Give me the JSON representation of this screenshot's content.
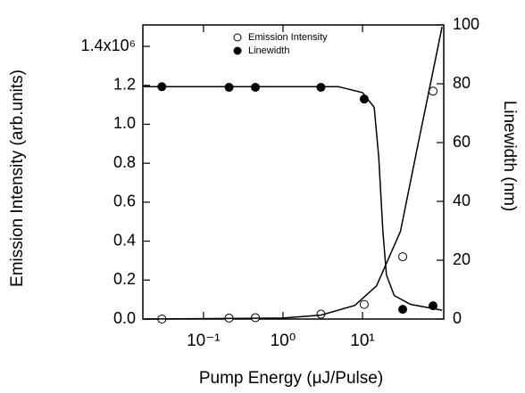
{
  "chart_data": {
    "type": "scatter",
    "x_label": "Pump Energy (μJ/Pulse)",
    "y_label": "Emission Intensity (arb.units)",
    "y2_label": "Linewidth (nm)",
    "log_x": true,
    "xlim": [
      0.0173,
      105
    ],
    "xticks": [
      {
        "value": 0.1,
        "label": "10⁻¹"
      },
      {
        "value": 1,
        "label": "10⁰"
      },
      {
        "value": 10,
        "label": "10¹"
      }
    ],
    "ylim": [
      0,
      1510000
    ],
    "yticks": [
      {
        "value": 0,
        "label": "0.0"
      },
      {
        "value": 200000,
        "label": "0.2"
      },
      {
        "value": 400000,
        "label": "0.4"
      },
      {
        "value": 600000,
        "label": "0.6"
      },
      {
        "value": 800000,
        "label": "0.8"
      },
      {
        "value": 1000000,
        "label": "1.0"
      },
      {
        "value": 1200000,
        "label": "1.2"
      },
      {
        "value": 1400000,
        "label": "1.4x10⁶"
      }
    ],
    "y2lim": [
      0,
      100
    ],
    "y2ticks": [
      0,
      20,
      40,
      60,
      80,
      100
    ],
    "legend": "top",
    "series": [
      {
        "name": "Emission Intensity",
        "marker": "open",
        "color": "#000000",
        "axis": "y",
        "x": [
          0.03,
          0.21,
          0.45,
          3.0,
          10.5,
          32,
          77
        ],
        "values": [
          0,
          5000,
          7000,
          25000,
          75000,
          320000,
          1170000
        ]
      },
      {
        "name": "Linewidth",
        "marker": "filled",
        "color": "#000000",
        "axis": "y2",
        "x": [
          0.03,
          0.21,
          0.45,
          3.0,
          10.5,
          32,
          77
        ],
        "values": [
          79,
          78.8,
          78.8,
          78.8,
          74.8,
          3.3,
          4.5
        ]
      },
      {
        "marker": "none",
        "color": "#000000",
        "axis": "y",
        "x": [
          0.0173,
          1,
          3,
          8,
          15,
          30,
          50,
          75,
          100
        ],
        "values": [
          0,
          5000,
          20000,
          70000,
          170000,
          450000,
          900000,
          1250000,
          1500000
        ]
      },
      {
        "marker": "none",
        "color": "#000000",
        "axis": "y2",
        "x": [
          0.0173,
          5,
          10,
          14,
          16,
          18,
          20,
          25,
          40,
          100
        ],
        "values": [
          79,
          79,
          77,
          72,
          55,
          30,
          15,
          8,
          5,
          3
        ]
      }
    ]
  }
}
